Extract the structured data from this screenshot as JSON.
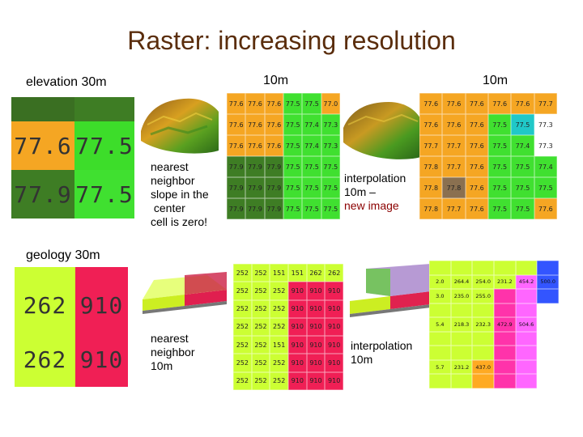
{
  "title": "Raster: increasing resolution",
  "labels": {
    "elevation_30m": "elevation 30m",
    "nn_10m_header": "10m",
    "interp_10m_header": "10m",
    "geology_30m": "geology 30m"
  },
  "notes": {
    "elev_nn": [
      "nearest",
      "neighbor",
      "slope in the",
      " center",
      "cell is zero!"
    ],
    "elev_interp": [
      "interpolation",
      "10m –"
    ],
    "elev_interp_red": "new image",
    "geo_nn": [
      "nearest",
      "neighbor",
      "10m"
    ],
    "geo_interp": [
      "interpolation",
      "10m"
    ]
  },
  "colors": {
    "title": "#5a2d0c",
    "orange": "#f5a623",
    "green": "#44dd22",
    "pink": "#f01f55",
    "yellowgreen": "#ccff33"
  },
  "elev30": {
    "cells": [
      {
        "value": "77.6",
        "color": "#f5a623"
      },
      {
        "value": "77.5",
        "color": "#3ddd2a"
      },
      {
        "value": "77.9",
        "color": "#3e7d24"
      },
      {
        "value": "77.5",
        "color": "#40e030"
      }
    ]
  },
  "elev_nn": {
    "rows": [
      [
        {
          "v": "77.6",
          "c": "#f5a623"
        },
        {
          "v": "77.6",
          "c": "#f5a623"
        },
        {
          "v": "77.6",
          "c": "#f5a623"
        },
        {
          "v": "77.5",
          "c": "#40e030"
        },
        {
          "v": "77.5",
          "c": "#40e030"
        },
        {
          "v": "77.0",
          "c": "#f5a623"
        }
      ],
      [
        {
          "v": "77.6",
          "c": "#f5a623"
        },
        {
          "v": "77.6",
          "c": "#f5a623"
        },
        {
          "v": "77.6",
          "c": "#f5a623"
        },
        {
          "v": "77.5",
          "c": "#40e030"
        },
        {
          "v": "77.4",
          "c": "#40e030"
        },
        {
          "v": "77.3",
          "c": "#40e030"
        }
      ],
      [
        {
          "v": "77.6",
          "c": "#f5a623"
        },
        {
          "v": "77.6",
          "c": "#f5a623"
        },
        {
          "v": "77.6",
          "c": "#f5a623"
        },
        {
          "v": "77.5",
          "c": "#40e030"
        },
        {
          "v": "77.4",
          "c": "#40e030"
        },
        {
          "v": "77.3",
          "c": "#40e030"
        }
      ],
      [
        {
          "v": "77.9",
          "c": "#3e7d24"
        },
        {
          "v": "77.9",
          "c": "#3e7d24"
        },
        {
          "v": "77.9",
          "c": "#3e7d24"
        },
        {
          "v": "77.5",
          "c": "#40e030"
        },
        {
          "v": "77.5",
          "c": "#40e030"
        },
        {
          "v": "77.5",
          "c": "#40e030"
        }
      ],
      [
        {
          "v": "77.9",
          "c": "#3e7d24"
        },
        {
          "v": "77.9",
          "c": "#3e7d24"
        },
        {
          "v": "77.9",
          "c": "#3e7d24"
        },
        {
          "v": "77.5",
          "c": "#40e030"
        },
        {
          "v": "77.5",
          "c": "#40e030"
        },
        {
          "v": "77.5",
          "c": "#40e030"
        }
      ],
      [
        {
          "v": "77.9",
          "c": "#3e7d24"
        },
        {
          "v": "77.9",
          "c": "#3e7d24"
        },
        {
          "v": "77.9",
          "c": "#3e7d24"
        },
        {
          "v": "77.5",
          "c": "#40e030"
        },
        {
          "v": "77.5",
          "c": "#40e030"
        },
        {
          "v": "77.5",
          "c": "#40e030"
        }
      ]
    ]
  },
  "elev_interp": {
    "rows": [
      [
        {
          "v": "77.6",
          "c": "#f5a623"
        },
        {
          "v": "77.6",
          "c": "#f5a623"
        },
        {
          "v": "77.6",
          "c": "#f5a623"
        },
        {
          "v": "77.6",
          "c": "#f5a623"
        },
        {
          "v": "77.6",
          "c": "#f5a623"
        },
        {
          "v": "77.7",
          "c": "#f5a623"
        }
      ],
      [
        {
          "v": "77.6",
          "c": "#f5a623"
        },
        {
          "v": "77.6",
          "c": "#f5a623"
        },
        {
          "v": "77.6",
          "c": "#f5a623"
        },
        {
          "v": "77.5",
          "c": "#40e030"
        },
        {
          "v": "77.5",
          "c": "#20c8c8"
        },
        {
          "v": "77.3",
          "c": "#ffffff"
        }
      ],
      [
        {
          "v": "77.7",
          "c": "#f5a623"
        },
        {
          "v": "77.7",
          "c": "#f5a623"
        },
        {
          "v": "77.6",
          "c": "#f5a623"
        },
        {
          "v": "77.5",
          "c": "#40e030"
        },
        {
          "v": "77.4",
          "c": "#40e030"
        },
        {
          "v": "77.3",
          "c": "#ffffff"
        }
      ],
      [
        {
          "v": "77.8",
          "c": "#f5a623"
        },
        {
          "v": "77.7",
          "c": "#f5a623"
        },
        {
          "v": "77.6",
          "c": "#f5a623"
        },
        {
          "v": "77.5",
          "c": "#40e030"
        },
        {
          "v": "77.5",
          "c": "#40e030"
        },
        {
          "v": "77.4",
          "c": "#40e030"
        }
      ],
      [
        {
          "v": "77.8",
          "c": "#f5a623"
        },
        {
          "v": "77.8",
          "c": "#8a7050"
        },
        {
          "v": "77.6",
          "c": "#f5a623"
        },
        {
          "v": "77.5",
          "c": "#40e030"
        },
        {
          "v": "77.5",
          "c": "#40e030"
        },
        {
          "v": "77.5",
          "c": "#40e030"
        }
      ],
      [
        {
          "v": "77.8",
          "c": "#f5a623"
        },
        {
          "v": "77.7",
          "c": "#f5a623"
        },
        {
          "v": "77.6",
          "c": "#f5a623"
        },
        {
          "v": "77.5",
          "c": "#40e030"
        },
        {
          "v": "77.5",
          "c": "#40e030"
        },
        {
          "v": "77.6",
          "c": "#f5a623"
        }
      ]
    ]
  },
  "geo30": {
    "cells": [
      {
        "value": "262",
        "color": "#ccff33"
      },
      {
        "value": "910",
        "color": "#f01f55"
      },
      {
        "value": "262",
        "color": "#ccff33"
      },
      {
        "value": "910",
        "color": "#f01f55"
      }
    ]
  },
  "geo_nn": {
    "rows": [
      [
        {
          "v": "252",
          "c": "#ccff33"
        },
        {
          "v": "252",
          "c": "#ccff33"
        },
        {
          "v": "151",
          "c": "#ccff33"
        },
        {
          "v": "151",
          "c": "#ccff33"
        },
        {
          "v": "262",
          "c": "#ccff33"
        },
        {
          "v": "262",
          "c": "#ccff33"
        }
      ],
      [
        {
          "v": "252",
          "c": "#ccff33"
        },
        {
          "v": "252",
          "c": "#ccff33"
        },
        {
          "v": "252",
          "c": "#ccff33"
        },
        {
          "v": "910",
          "c": "#f01f55"
        },
        {
          "v": "910",
          "c": "#f01f55"
        },
        {
          "v": "910",
          "c": "#f01f55"
        }
      ],
      [
        {
          "v": "252",
          "c": "#ccff33"
        },
        {
          "v": "252",
          "c": "#ccff33"
        },
        {
          "v": "252",
          "c": "#ccff33"
        },
        {
          "v": "910",
          "c": "#f01f55"
        },
        {
          "v": "910",
          "c": "#f01f55"
        },
        {
          "v": "910",
          "c": "#f01f55"
        }
      ],
      [
        {
          "v": "252",
          "c": "#ccff33"
        },
        {
          "v": "252",
          "c": "#ccff33"
        },
        {
          "v": "252",
          "c": "#ccff33"
        },
        {
          "v": "910",
          "c": "#f01f55"
        },
        {
          "v": "910",
          "c": "#f01f55"
        },
        {
          "v": "910",
          "c": "#f01f55"
        }
      ],
      [
        {
          "v": "252",
          "c": "#ccff33"
        },
        {
          "v": "252",
          "c": "#ccff33"
        },
        {
          "v": "151",
          "c": "#ccff33"
        },
        {
          "v": "910",
          "c": "#f01f55"
        },
        {
          "v": "910",
          "c": "#f01f55"
        },
        {
          "v": "910",
          "c": "#f01f55"
        }
      ],
      [
        {
          "v": "252",
          "c": "#ccff33"
        },
        {
          "v": "252",
          "c": "#ccff33"
        },
        {
          "v": "252",
          "c": "#ccff33"
        },
        {
          "v": "910",
          "c": "#f01f55"
        },
        {
          "v": "910",
          "c": "#f01f55"
        },
        {
          "v": "910",
          "c": "#f01f55"
        }
      ],
      [
        {
          "v": "252",
          "c": "#ccff33"
        },
        {
          "v": "252",
          "c": "#ccff33"
        },
        {
          "v": "252",
          "c": "#ccff33"
        },
        {
          "v": "910",
          "c": "#f01f55"
        },
        {
          "v": "910",
          "c": "#f01f55"
        },
        {
          "v": "910",
          "c": "#f01f55"
        }
      ]
    ]
  },
  "geo_interp": {
    "rows": [
      [
        {
          "v": "",
          "c": "#ccff33"
        },
        {
          "v": "",
          "c": "#ccff33"
        },
        {
          "v": "",
          "c": "#ccff33"
        },
        {
          "v": "",
          "c": "#ccff33"
        },
        {
          "v": "",
          "c": "#ccff33"
        },
        {
          "v": "",
          "c": "#3355ff"
        }
      ],
      [
        {
          "v": "2.0",
          "c": "#ccff33"
        },
        {
          "v": "264.4",
          "c": "#ccff33"
        },
        {
          "v": "254.0",
          "c": "#ccff33"
        },
        {
          "v": "231.2",
          "c": "#ccff33"
        },
        {
          "v": "454.2",
          "c": "#ff66ff"
        },
        {
          "v": "500.0",
          "c": "#3355ff"
        }
      ],
      [
        {
          "v": "3.0",
          "c": "#ccff33"
        },
        {
          "v": "235.0",
          "c": "#ccff33"
        },
        {
          "v": "255.0",
          "c": "#ccff33"
        },
        {
          "v": "",
          "c": "#ff33aa"
        },
        {
          "v": "",
          "c": "#ff66ff"
        },
        {
          "v": "",
          "c": "#3355ff"
        }
      ],
      [
        {
          "v": "",
          "c": "#ccff33"
        },
        {
          "v": "",
          "c": "#ccff33"
        },
        {
          "v": "",
          "c": "#ccff33"
        },
        {
          "v": "",
          "c": "#ff33aa"
        },
        {
          "v": "",
          "c": "#ff66ff"
        },
        {
          "v": "",
          "c": "#ffffff"
        }
      ],
      [
        {
          "v": "5.4",
          "c": "#ccff33"
        },
        {
          "v": "218.3",
          "c": "#ccff33"
        },
        {
          "v": "232.3",
          "c": "#ccff33"
        },
        {
          "v": "472.9",
          "c": "#ff33aa"
        },
        {
          "v": "504.6",
          "c": "#ff66ff"
        },
        {
          "v": "",
          "c": "#ffffff"
        }
      ],
      [
        {
          "v": "",
          "c": "#ccff33"
        },
        {
          "v": "",
          "c": "#ccff33"
        },
        {
          "v": "",
          "c": "#ccff33"
        },
        {
          "v": "",
          "c": "#ff33aa"
        },
        {
          "v": "",
          "c": "#ff66ff"
        },
        {
          "v": "",
          "c": "#ffffff"
        }
      ],
      [
        {
          "v": "",
          "c": "#ccff33"
        },
        {
          "v": "",
          "c": "#ccff33"
        },
        {
          "v": "",
          "c": "#ccff33"
        },
        {
          "v": "",
          "c": "#ff33aa"
        },
        {
          "v": "",
          "c": "#ff66ff"
        },
        {
          "v": "",
          "c": "#ffffff"
        }
      ],
      [
        {
          "v": "5.7",
          "c": "#ccff33"
        },
        {
          "v": "231.2",
          "c": "#ccff33"
        },
        {
          "v": "437.0",
          "c": "#ffaa22"
        },
        {
          "v": "",
          "c": "#ff33aa"
        },
        {
          "v": "",
          "c": "#ff66ff"
        },
        {
          "v": "",
          "c": "#ffffff"
        }
      ],
      [
        {
          "v": "",
          "c": "#ccff33"
        },
        {
          "v": "",
          "c": "#ccff33"
        },
        {
          "v": "",
          "c": "#ffaa22"
        },
        {
          "v": "",
          "c": "#ff33aa"
        },
        {
          "v": "",
          "c": "#ff66ff"
        },
        {
          "v": "",
          "c": "#ffffff"
        }
      ]
    ]
  }
}
